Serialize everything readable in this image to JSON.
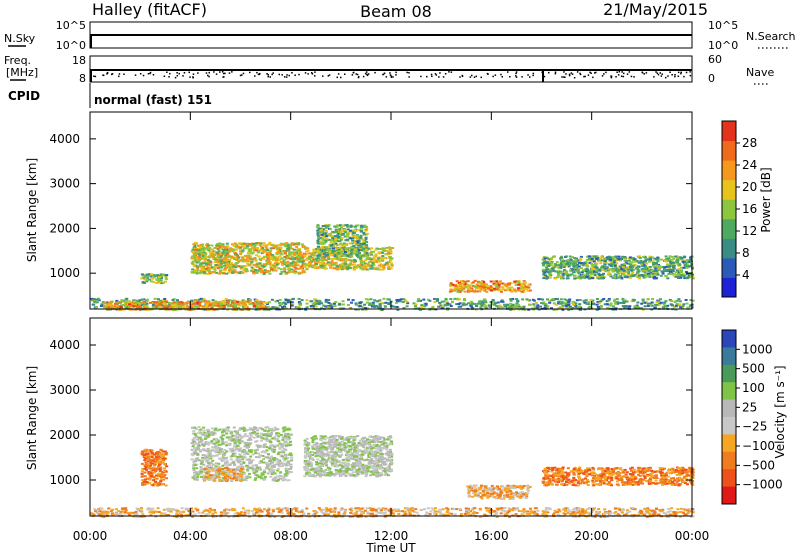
{
  "header": {
    "station": "Halley (fitACF)",
    "beam": "Beam 08",
    "date": "21/May/2015"
  },
  "summary_panels": {
    "nsky": {
      "label": "N.Sky",
      "ticks": [
        "10^5",
        "10^0"
      ]
    },
    "nsearch": {
      "label": "N.Search",
      "ticks": [
        "10^5",
        "10^0"
      ]
    },
    "freq": {
      "label_line1": "Freq.",
      "label_line2": "[MHz]",
      "ticks": [
        "18",
        "8"
      ]
    },
    "nave": {
      "label": "Nave",
      "ticks": [
        "60",
        "0"
      ]
    },
    "cpid": {
      "label": "CPID",
      "value": "normal (fast) 151"
    }
  },
  "chart_data": [
    {
      "type": "heatmap",
      "panel": "power",
      "ylabel": "Slant Range [km]",
      "xlabel": "",
      "y_ticks": [
        1000,
        2000,
        3000,
        4000
      ],
      "ylim": [
        200,
        4600
      ],
      "x_ticks": [
        "00:00",
        "04:00",
        "08:00",
        "12:00",
        "16:00",
        "20:00",
        "00:00"
      ],
      "xlim_hours": [
        0,
        24
      ],
      "colorbar": {
        "label": "Power [dB]",
        "ticks": [
          "4",
          "8",
          "12",
          "16",
          "20",
          "24",
          "28"
        ],
        "range": [
          0,
          32
        ]
      },
      "blobs": [
        {
          "t0": 0.0,
          "t1": 24.0,
          "r0": 200,
          "r1": 450,
          "level": 10
        },
        {
          "t0": 0.5,
          "t1": 7.0,
          "r0": 200,
          "r1": 400,
          "level": 20
        },
        {
          "t0": 2.0,
          "t1": 3.0,
          "r0": 800,
          "r1": 1000,
          "level": 12
        },
        {
          "t0": 4.0,
          "t1": 8.5,
          "r0": 1000,
          "r1": 1700,
          "level": 17
        },
        {
          "t0": 8.5,
          "t1": 12.0,
          "r0": 1100,
          "r1": 1600,
          "level": 16
        },
        {
          "t0": 9.0,
          "t1": 11.0,
          "r0": 1400,
          "r1": 2100,
          "level": 12
        },
        {
          "t0": 14.3,
          "t1": 17.5,
          "r0": 600,
          "r1": 850,
          "level": 21
        },
        {
          "t0": 18.0,
          "t1": 24.0,
          "r0": 900,
          "r1": 1400,
          "level": 11
        }
      ]
    },
    {
      "type": "heatmap",
      "panel": "velocity",
      "ylabel": "Slant Range [km]",
      "xlabel": "Time UT",
      "y_ticks": [
        1000,
        2000,
        3000,
        4000
      ],
      "ylim": [
        200,
        4600
      ],
      "x_ticks": [
        "00:00",
        "04:00",
        "08:00",
        "12:00",
        "16:00",
        "20:00",
        "00:00"
      ],
      "xlim_hours": [
        0,
        24
      ],
      "colorbar": {
        "label": "Velocity [m s⁻¹]",
        "ticks": [
          "1000",
          "500",
          "100",
          "25",
          "−25",
          "−100",
          "−500",
          "−1000"
        ]
      },
      "blobs": [
        {
          "t0": 0.0,
          "t1": 24.0,
          "r0": 200,
          "r1": 400,
          "level": 3
        },
        {
          "t0": 2.0,
          "t1": 3.0,
          "r0": 900,
          "r1": 1700,
          "level": 2
        },
        {
          "t0": 4.0,
          "t1": 8.0,
          "r0": 1000,
          "r1": 2200,
          "level": 5
        },
        {
          "t0": 4.5,
          "t1": 6.0,
          "r0": 1000,
          "r1": 1300,
          "level": 3
        },
        {
          "t0": 8.5,
          "t1": 12.0,
          "r0": 1100,
          "r1": 2000,
          "level": 5
        },
        {
          "t0": 15.0,
          "t1": 17.5,
          "r0": 600,
          "r1": 900,
          "level": 3
        },
        {
          "t0": 18.0,
          "t1": 24.0,
          "r0": 900,
          "r1": 1300,
          "level": 2
        }
      ]
    }
  ]
}
